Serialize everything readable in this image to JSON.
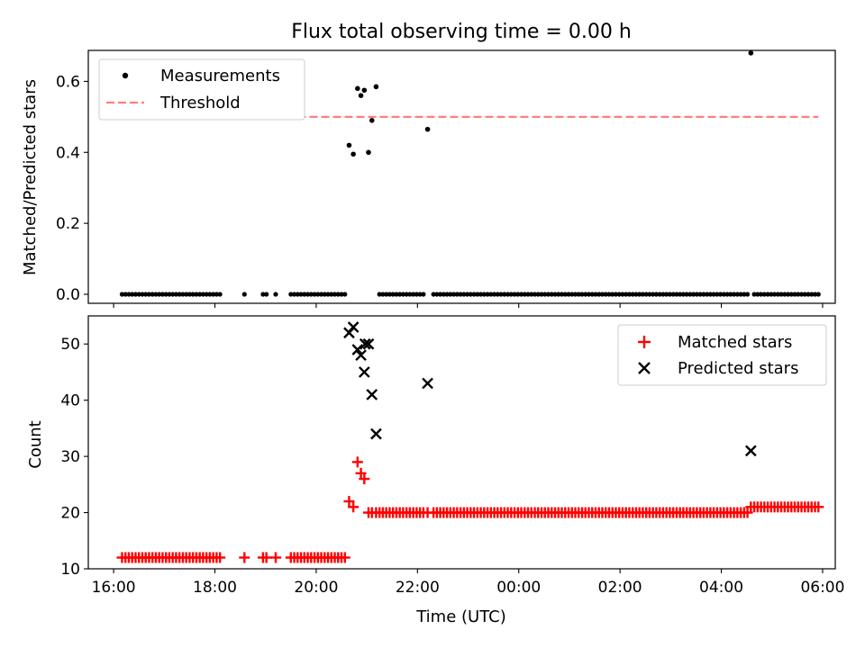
{
  "title": "Flux total observing time = 0.00 h",
  "colors": {
    "measurement": "#000000",
    "threshold": "#ff7f7f",
    "matched": "#ff0000",
    "predicted": "#000000"
  },
  "chart_data": [
    {
      "type": "scatter",
      "ylabel": "Matched/Predicted stars",
      "xlim": [
        "16:00",
        "06:00"
      ],
      "ylim": [
        0,
        0.7
      ],
      "yticks": [
        "0.0",
        "0.2",
        "0.4",
        "0.6"
      ],
      "legend": {
        "placement": "top-left",
        "entries": [
          "Measurements",
          "Threshold"
        ]
      },
      "threshold": {
        "name": "Threshold",
        "value": 0.5,
        "x_range": [
          "16:10",
          "05:55"
        ]
      },
      "series": [
        {
          "name": "Measurements",
          "zero_x": [
            "16:10",
            "16:14",
            "16:18",
            "16:22",
            "16:26",
            "16:30",
            "16:34",
            "16:38",
            "16:42",
            "16:46",
            "16:50",
            "16:54",
            "16:58",
            "17:02",
            "17:06",
            "17:10",
            "17:14",
            "17:18",
            "17:22",
            "17:26",
            "17:30",
            "17:34",
            "17:38",
            "17:42",
            "17:46",
            "17:50",
            "17:54",
            "17:58",
            "18:02",
            "18:06",
            "18:35",
            "18:57",
            "19:01",
            "19:12",
            "19:30",
            "19:34",
            "19:38",
            "19:42",
            "19:46",
            "19:50",
            "19:54",
            "19:58",
            "20:02",
            "20:06",
            "20:10",
            "20:14",
            "20:18",
            "20:22",
            "20:26",
            "20:30",
            "20:34",
            "21:15",
            "21:19",
            "21:23",
            "21:27",
            "21:31",
            "21:35",
            "21:39",
            "21:43",
            "21:47",
            "21:51",
            "21:55",
            "21:59",
            "22:03",
            "22:07",
            "22:19",
            "22:23",
            "22:27",
            "22:31",
            "22:35",
            "22:39",
            "22:43",
            "22:47",
            "22:51",
            "22:55",
            "22:59",
            "23:03",
            "23:07",
            "23:11",
            "23:15",
            "23:19",
            "23:23",
            "23:27",
            "23:31",
            "23:35",
            "23:39",
            "23:43",
            "23:47",
            "23:51",
            "23:55",
            "23:59",
            "00:03",
            "00:07",
            "00:11",
            "00:15",
            "00:19",
            "00:23",
            "00:27",
            "00:31",
            "00:35",
            "00:39",
            "00:43",
            "00:47",
            "00:51",
            "00:55",
            "00:59",
            "01:03",
            "01:07",
            "01:11",
            "01:15",
            "01:19",
            "01:23",
            "01:27",
            "01:31",
            "01:35",
            "01:39",
            "01:43",
            "01:47",
            "01:51",
            "01:55",
            "01:59",
            "02:03",
            "02:07",
            "02:11",
            "02:15",
            "02:19",
            "02:23",
            "02:27",
            "02:31",
            "02:35",
            "02:39",
            "02:43",
            "02:47",
            "02:51",
            "02:55",
            "02:59",
            "03:03",
            "03:07",
            "03:11",
            "03:15",
            "03:19",
            "03:23",
            "03:27",
            "03:31",
            "03:35",
            "03:39",
            "03:43",
            "03:47",
            "03:51",
            "03:55",
            "03:59",
            "04:03",
            "04:07",
            "04:11",
            "04:15",
            "04:19",
            "04:23",
            "04:27",
            "04:31",
            "04:39",
            "04:43",
            "04:47",
            "04:51",
            "04:55",
            "04:59",
            "05:03",
            "05:07",
            "05:11",
            "05:15",
            "05:19",
            "05:23",
            "05:27",
            "05:31",
            "05:35",
            "05:39",
            "05:43",
            "05:47",
            "05:51",
            "05:55"
          ],
          "points": [
            {
              "x": "20:39",
              "y": 0.42
            },
            {
              "x": "20:44",
              "y": 0.395
            },
            {
              "x": "20:49",
              "y": 0.58
            },
            {
              "x": "20:53",
              "y": 0.56
            },
            {
              "x": "20:57",
              "y": 0.575
            },
            {
              "x": "21:02",
              "y": 0.4
            },
            {
              "x": "21:06",
              "y": 0.49
            },
            {
              "x": "21:11",
              "y": 0.585
            },
            {
              "x": "22:12",
              "y": 0.465
            },
            {
              "x": "04:35",
              "y": 0.68
            }
          ]
        }
      ]
    },
    {
      "type": "scatter",
      "xlabel": "Time (UTC)",
      "ylabel": "Count",
      "xlim": [
        "16:00",
        "06:00"
      ],
      "ylim": [
        10,
        55
      ],
      "yticks": [
        "10",
        "20",
        "30",
        "40",
        "50"
      ],
      "xticks": [
        "16:00",
        "18:00",
        "20:00",
        "22:00",
        "00:00",
        "02:00",
        "04:00",
        "06:00"
      ],
      "legend": {
        "placement": "top-right",
        "entries": [
          "Matched stars",
          "Predicted stars"
        ]
      },
      "series": [
        {
          "name": "Matched stars",
          "points": [
            {
              "x": "20:39",
              "y": 22
            },
            {
              "x": "20:44",
              "y": 21
            },
            {
              "x": "20:49",
              "y": 29
            },
            {
              "x": "20:53",
              "y": 27
            },
            {
              "x": "20:57",
              "y": 26
            },
            {
              "x": "04:35",
              "y": 21
            }
          ],
          "runs": [
            {
              "y": 12,
              "x": [
                "16:10",
                "16:14",
                "16:18",
                "16:22",
                "16:26",
                "16:30",
                "16:34",
                "16:38",
                "16:42",
                "16:46",
                "16:50",
                "16:54",
                "16:58",
                "17:02",
                "17:06",
                "17:10",
                "17:14",
                "17:18",
                "17:22",
                "17:26",
                "17:30",
                "17:34",
                "17:38",
                "17:42",
                "17:46",
                "17:50",
                "17:54",
                "17:58",
                "18:02",
                "18:06",
                "18:35",
                "18:57",
                "19:01",
                "19:12",
                "19:30",
                "19:34",
                "19:38",
                "19:42",
                "19:46",
                "19:50",
                "19:54",
                "19:58",
                "20:02",
                "20:06",
                "20:10",
                "20:14",
                "20:18",
                "20:22",
                "20:26",
                "20:30",
                "20:34"
              ]
            },
            {
              "y": 20,
              "x": [
                "21:02",
                "21:06",
                "21:11",
                "21:15",
                "21:19",
                "21:23",
                "21:27",
                "21:31",
                "21:35",
                "21:39",
                "21:43",
                "21:47",
                "21:51",
                "21:55",
                "21:59",
                "22:03",
                "22:07",
                "22:12",
                "22:19",
                "22:23",
                "22:27",
                "22:31",
                "22:35",
                "22:39",
                "22:43",
                "22:47",
                "22:51",
                "22:55",
                "22:59",
                "23:03",
                "23:07",
                "23:11",
                "23:15",
                "23:19",
                "23:23",
                "23:27",
                "23:31",
                "23:35",
                "23:39",
                "23:43",
                "23:47",
                "23:51",
                "23:55",
                "23:59",
                "00:03",
                "00:07",
                "00:11",
                "00:15",
                "00:19",
                "00:23",
                "00:27",
                "00:31",
                "00:35",
                "00:39",
                "00:43",
                "00:47",
                "00:51",
                "00:55",
                "00:59",
                "01:03",
                "01:07",
                "01:11",
                "01:15",
                "01:19",
                "01:23",
                "01:27",
                "01:31",
                "01:35",
                "01:39",
                "01:43",
                "01:47",
                "01:51",
                "01:55",
                "01:59",
                "02:03",
                "02:07",
                "02:11",
                "02:15",
                "02:19",
                "02:23",
                "02:27",
                "02:31",
                "02:35",
                "02:39",
                "02:43",
                "02:47",
                "02:51",
                "02:55",
                "02:59",
                "03:03",
                "03:07",
                "03:11",
                "03:15",
                "03:19",
                "03:23",
                "03:27",
                "03:31",
                "03:35",
                "03:39",
                "03:43",
                "03:47",
                "03:51",
                "03:55",
                "03:59",
                "04:03",
                "04:07",
                "04:11",
                "04:15",
                "04:19",
                "04:23",
                "04:27",
                "04:31"
              ]
            },
            {
              "y": 21,
              "x": [
                "04:39",
                "04:43",
                "04:47",
                "04:51",
                "04:55",
                "04:59",
                "05:03",
                "05:07",
                "05:11",
                "05:15",
                "05:19",
                "05:23",
                "05:27",
                "05:31",
                "05:35",
                "05:39",
                "05:43",
                "05:47",
                "05:51",
                "05:55"
              ]
            }
          ]
        },
        {
          "name": "Predicted stars",
          "points": [
            {
              "x": "20:39",
              "y": 52
            },
            {
              "x": "20:44",
              "y": 53
            },
            {
              "x": "20:49",
              "y": 49
            },
            {
              "x": "20:53",
              "y": 48
            },
            {
              "x": "20:57",
              "y": 45
            },
            {
              "x": "20:58",
              "y": 50
            },
            {
              "x": "21:02",
              "y": 50
            },
            {
              "x": "21:06",
              "y": 41
            },
            {
              "x": "21:11",
              "y": 34
            },
            {
              "x": "22:12",
              "y": 43
            },
            {
              "x": "04:35",
              "y": 31
            }
          ]
        }
      ]
    }
  ]
}
